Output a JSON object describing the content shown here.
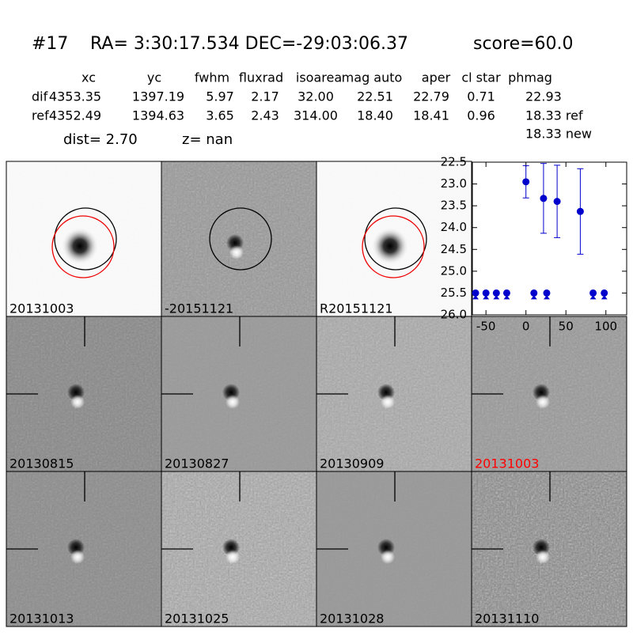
{
  "header": {
    "id": "#17",
    "coords": "RA= 3:30:17.534 DEC=-29:03:06.37",
    "score": "score=60.0"
  },
  "table": {
    "columns": [
      "xc",
      "yc",
      "fwhm",
      "fluxrad",
      "isoarea",
      "mag auto",
      "aper",
      "cl star",
      "phmag"
    ],
    "rows": [
      {
        "label": "dif",
        "cells": [
          "4353.35",
          "1397.19",
          "5.97",
          "2.17",
          "32.00",
          "22.51",
          "22.79",
          "0.71",
          "22.93"
        ]
      },
      {
        "label": "ref",
        "cells": [
          "4352.49",
          "1394.63",
          "3.65",
          "2.43",
          "314.00",
          "18.40",
          "18.41",
          "0.96",
          "18.33 ref"
        ]
      }
    ],
    "note": "18.33 new"
  },
  "dist": "dist=  2.70",
  "z": "z=   nan",
  "panels": [
    {
      "label": "20131003"
    },
    {
      "label": "-20151121"
    },
    {
      "label": "R20151121"
    },
    {
      "label": "20130815"
    },
    {
      "label": "20130827"
    },
    {
      "label": "20130909"
    },
    {
      "label": "20131003",
      "color": "#ff0000"
    },
    {
      "label": "20131013"
    },
    {
      "label": "20131025"
    },
    {
      "label": "20131028"
    },
    {
      "label": "20131110"
    }
  ],
  "chart_data": {
    "type": "errorbar",
    "series": [
      {
        "color": "#0000cc",
        "x": [
          0,
          22,
          39,
          68
        ],
        "values": [
          22.95,
          23.33,
          23.4,
          23.63
        ],
        "errors": [
          0.37,
          0.8,
          0.83,
          0.98
        ]
      },
      {
        "color": "#0000cc",
        "x": [
          -63,
          -50,
          -37,
          -24,
          10,
          26,
          84,
          98
        ],
        "values": [
          25.5,
          25.5,
          25.5,
          25.5,
          25.5,
          25.5,
          25.5,
          25.5
        ],
        "upper_limit": true
      }
    ],
    "xlim": [
      -67,
      126
    ],
    "xticks": [
      -50,
      0,
      50,
      100
    ],
    "ylim": [
      26.0,
      22.5
    ],
    "yticks": [
      22.5,
      {
        "value": 23,
        "label": "23.0"
      },
      23.5,
      {
        "value": 24,
        "label": "24.0"
      },
      24.5,
      {
        "value": 25,
        "label": "25.0"
      },
      25.5,
      {
        "value": 26,
        "label": "26.0"
      }
    ]
  }
}
